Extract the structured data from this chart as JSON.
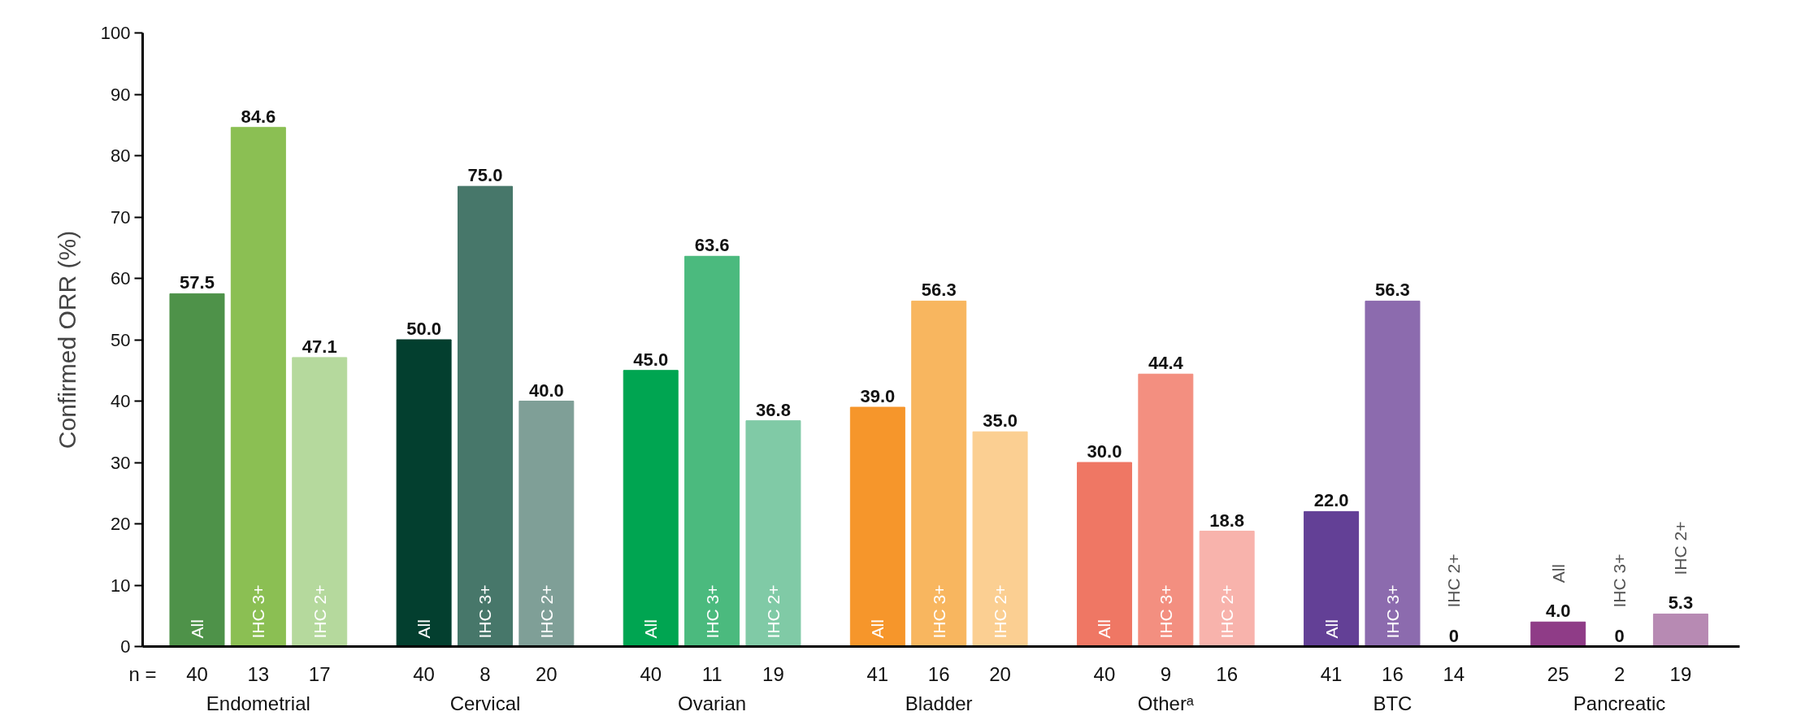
{
  "chart_data": {
    "type": "bar",
    "ylabel": "Confirmed ORR (%)",
    "categories": [
      "Endometrial",
      "Cervical",
      "Ovarian",
      "Bladder",
      "Otherᵃ",
      "BTC",
      "Pancreatic"
    ],
    "series": [
      {
        "name": "All",
        "colors": [
          "#4e9249",
          "#033f2f",
          "#00a551",
          "#f6962b",
          "#ef7764",
          "#634096",
          "#8f3c87"
        ],
        "values": [
          57.5,
          50.0,
          45.0,
          39.0,
          30.0,
          22.0,
          4.0
        ],
        "value_labels": [
          "57.5",
          "50.0",
          "45.0",
          "39.0",
          "30.0",
          "22.0",
          "4.0"
        ]
      },
      {
        "name": "IHC 3+",
        "colors": [
          "#8bbf53",
          "#47776a",
          "#4bba7e",
          "#f8b65f",
          "#f38f80",
          "#8c6bae",
          "#a45f9e"
        ],
        "values": [
          84.6,
          75.0,
          63.6,
          56.3,
          44.4,
          56.3,
          0
        ],
        "value_labels": [
          "84.6",
          "75.0",
          "63.6",
          "56.3",
          "44.4",
          "56.3",
          "0"
        ]
      },
      {
        "name": "IHC 2+",
        "colors": [
          "#b5d99d",
          "#7f9f97",
          "#80caa6",
          "#fbcf92",
          "#f8b3ac",
          "#b7a4cf",
          "#b78ab3"
        ],
        "values": [
          47.1,
          40.0,
          36.8,
          35.0,
          18.8,
          0,
          5.3
        ],
        "value_labels": [
          "47.1",
          "40.0",
          "36.8",
          "35.0",
          "18.8",
          "0",
          "5.3"
        ]
      }
    ],
    "annotations": [
      "n =",
      "40",
      "13",
      "17",
      "40",
      "8",
      "20",
      "40",
      "11",
      "19",
      "41",
      "16",
      "20",
      "40",
      "9",
      "16",
      "41",
      "16",
      "14",
      "25",
      "2",
      "19"
    ],
    "ylim": [
      0,
      100
    ],
    "yticks": [
      0,
      10,
      20,
      30,
      40,
      50,
      60,
      70,
      80,
      90,
      100
    ],
    "grid": false
  }
}
